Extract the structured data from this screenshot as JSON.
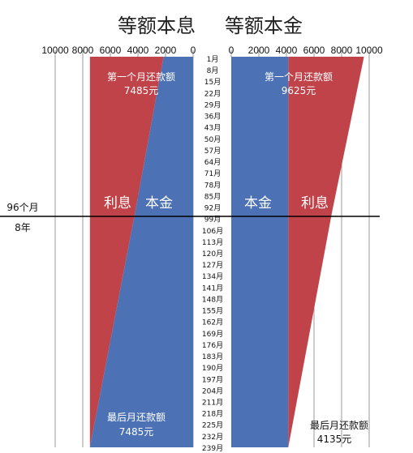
{
  "titles": {
    "left": "等额本息",
    "right": "等额本金"
  },
  "colors": {
    "interest": "#C0434A",
    "principal": "#4C72B5",
    "grid": "#9a9a9a",
    "line": "#000000"
  },
  "divider": {
    "label_top": "96个月",
    "label_bottom": "8年"
  },
  "annotations": {
    "left_first": {
      "line1": "第一个月还款额",
      "line2": "7485元"
    },
    "left_last": {
      "line1": "最后月还款额",
      "line2": "7485元"
    },
    "right_first": {
      "line1": "第一个月还款额",
      "line2": "9625元"
    },
    "right_last": {
      "line1": "最后月还款额",
      "line2": "4135元"
    }
  },
  "chart_data": [
    {
      "type": "area",
      "title": "等额本息",
      "axis": "reversed",
      "xlim": [
        0,
        10000
      ],
      "x_ticks": [
        "10000",
        "8000",
        "6000",
        "4000",
        "2000",
        "0"
      ],
      "month_labels": [
        "1月",
        "8月",
        "15月",
        "22月",
        "29月",
        "36月",
        "43月",
        "50月",
        "57月",
        "64月",
        "71月",
        "78月",
        "85月",
        "92月",
        "99月",
        "106月",
        "113月",
        "120月",
        "127月",
        "134月",
        "141月",
        "148月",
        "155月",
        "162月",
        "169月",
        "176月",
        "183月",
        "190月",
        "197月",
        "204月",
        "211月",
        "218月",
        "225月",
        "232月",
        "239月"
      ],
      "months": [
        1,
        96,
        240
      ],
      "series": [
        {
          "name": "本金",
          "values": [
            2140,
            4200,
            7485
          ]
        },
        {
          "name": "利息",
          "values": [
            5345,
            3285,
            0
          ]
        }
      ],
      "total_payment": 7485
    },
    {
      "type": "area",
      "title": "等额本金",
      "xlim": [
        0,
        10000
      ],
      "x_ticks": [
        "0",
        "2000",
        "4000",
        "6000",
        "8000",
        "10000"
      ],
      "months": [
        1,
        96,
        240
      ],
      "series": [
        {
          "name": "本金",
          "values": [
            4135,
            4135,
            4135
          ]
        },
        {
          "name": "利息",
          "values": [
            5490,
            3170,
            0
          ]
        }
      ]
    }
  ]
}
